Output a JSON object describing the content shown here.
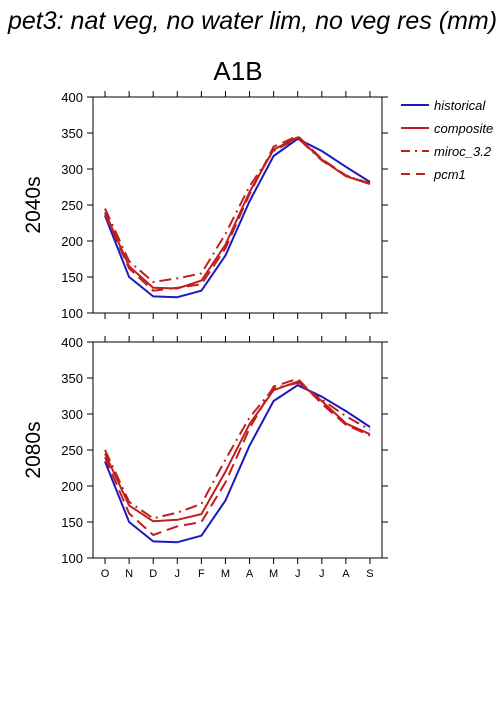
{
  "page": {
    "title": "pet3: nat veg, no water lim, no veg res (mm)",
    "scenario": "A1B"
  },
  "chart_data": [
    {
      "type": "line",
      "panel_label": "2040s",
      "x": [
        "O",
        "N",
        "D",
        "J",
        "F",
        "M",
        "A",
        "M",
        "J",
        "J",
        "A",
        "S"
      ],
      "ylim": [
        100,
        400
      ],
      "yticks": [
        100,
        150,
        200,
        250,
        300,
        350,
        400
      ],
      "grid": false,
      "legend_position": "right",
      "series": [
        {
          "name": "historical",
          "color": "#1a1abf",
          "dash": "solid",
          "values": [
            235,
            150,
            123,
            122,
            131,
            180,
            255,
            318,
            342,
            325,
            303,
            282
          ]
        },
        {
          "name": "composite",
          "color": "#bf1f1f",
          "dash": "solid",
          "values": [
            240,
            165,
            135,
            134,
            145,
            195,
            268,
            327,
            344,
            313,
            290,
            279
          ]
        },
        {
          "name": "miroc_3.2",
          "color": "#bf1f1f",
          "dash": "dashdot",
          "values": [
            245,
            172,
            143,
            148,
            155,
            210,
            276,
            325,
            343,
            312,
            291,
            280
          ]
        },
        {
          "name": "pcm1",
          "color": "#bf1f1f",
          "dash": "dashed",
          "values": [
            237,
            162,
            131,
            135,
            140,
            190,
            265,
            331,
            346,
            314,
            291,
            279
          ]
        }
      ]
    },
    {
      "type": "line",
      "panel_label": "2080s",
      "x": [
        "O",
        "N",
        "D",
        "J",
        "F",
        "M",
        "A",
        "M",
        "J",
        "J",
        "A",
        "S"
      ],
      "ylim": [
        100,
        400
      ],
      "yticks": [
        100,
        150,
        200,
        250,
        300,
        350,
        400
      ],
      "grid": false,
      "series": [
        {
          "name": "historical",
          "color": "#1a1abf",
          "dash": "solid",
          "values": [
            234,
            150,
            123,
            122,
            131,
            180,
            256,
            318,
            340,
            324,
            304,
            282
          ]
        },
        {
          "name": "composite",
          "color": "#bf1f1f",
          "dash": "solid",
          "values": [
            245,
            173,
            151,
            153,
            161,
            220,
            286,
            333,
            345,
            318,
            287,
            272
          ]
        },
        {
          "name": "miroc_3.2",
          "color": "#bf1f1f",
          "dash": "dashdot",
          "values": [
            250,
            178,
            155,
            163,
            175,
            237,
            295,
            336,
            343,
            320,
            297,
            278
          ]
        },
        {
          "name": "pcm1",
          "color": "#bf1f1f",
          "dash": "dashed",
          "values": [
            240,
            162,
            132,
            144,
            150,
            205,
            280,
            338,
            349,
            314,
            285,
            270
          ]
        }
      ]
    }
  ]
}
